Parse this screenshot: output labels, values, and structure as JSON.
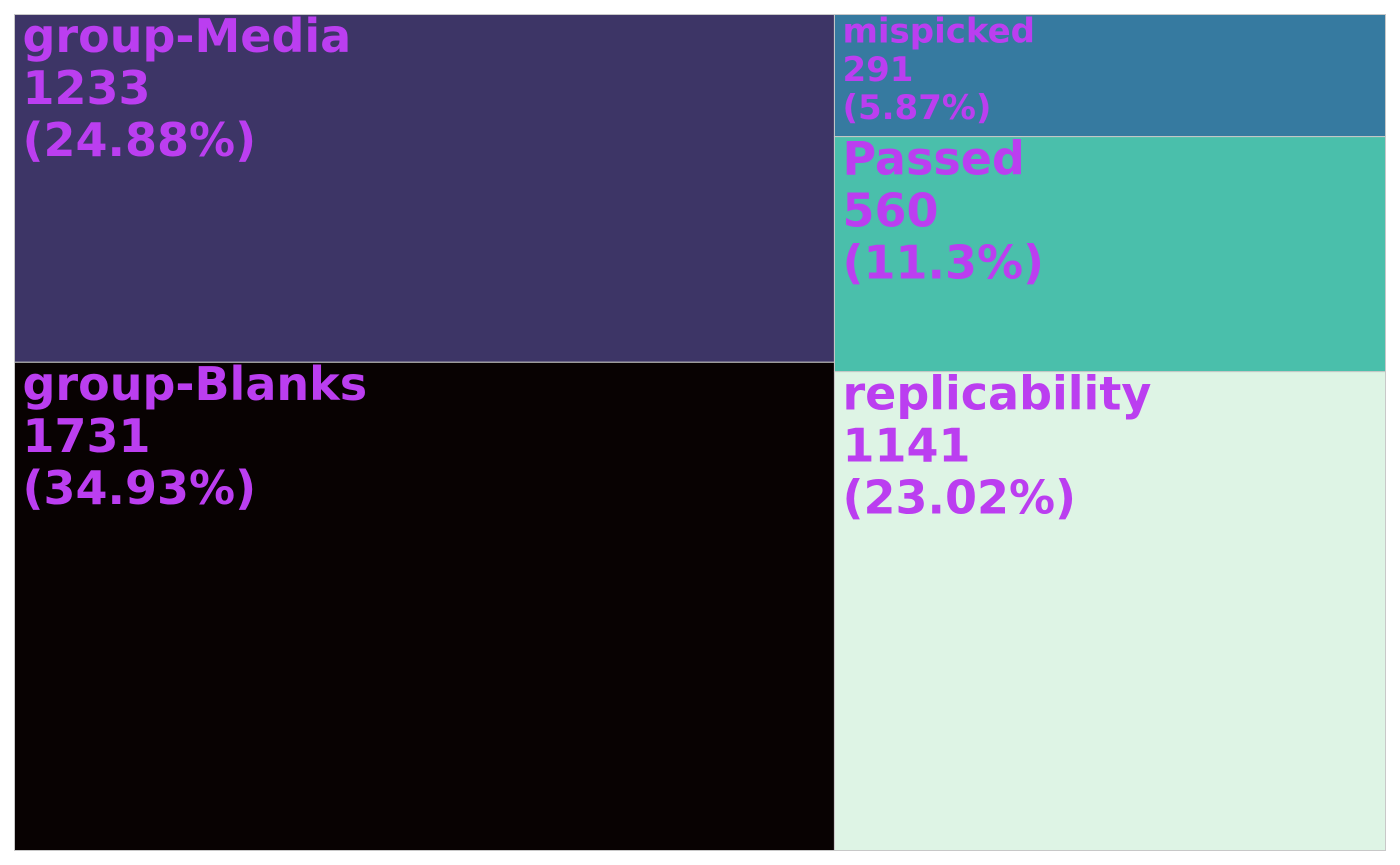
{
  "chart_data": {
    "type": "treemap",
    "label_color": "#BB3EF0",
    "border_color": "#c8c8c8",
    "items": [
      {
        "name": "group-Media",
        "value": 1233,
        "percent": "24.88%",
        "color": "#3D3566"
      },
      {
        "name": "group-Blanks",
        "value": 1731,
        "percent": "34.93%",
        "color": "#080202"
      },
      {
        "name": "mispicked",
        "value": 291,
        "percent": "5.87%",
        "color": "#367AA0"
      },
      {
        "name": "Passed",
        "value": 560,
        "percent": "11.3%",
        "color": "#4ABFAB"
      },
      {
        "name": "replicability",
        "value": 1141,
        "percent": "23.02%",
        "color": "#DEF4E5"
      }
    ]
  }
}
